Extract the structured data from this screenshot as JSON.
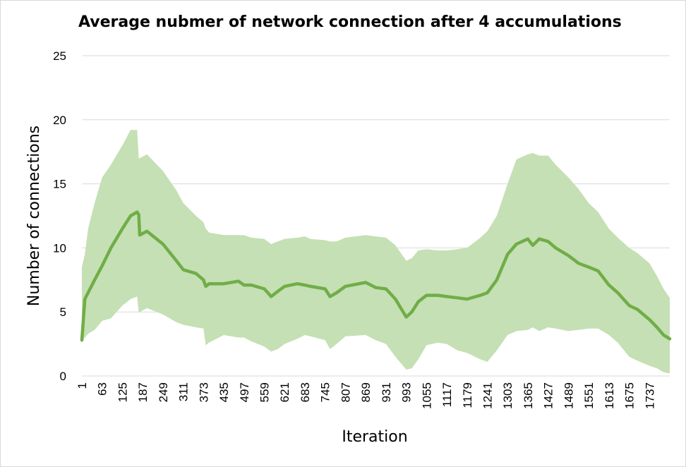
{
  "chart_data": {
    "type": "area",
    "title": "Average nubmer of network connection after 4 accumulations",
    "xlabel": "Iteration",
    "ylabel": "Number of connections",
    "ylim": [
      0,
      25
    ],
    "xlim": [
      1,
      1799
    ],
    "yticks": [
      0,
      5,
      10,
      15,
      20,
      25
    ],
    "xticks": [
      "1",
      "63",
      "125",
      "187",
      "249",
      "311",
      "373",
      "435",
      "497",
      "559",
      "621",
      "683",
      "745",
      "807",
      "869",
      "931",
      "993",
      "1055",
      "1117",
      "1179",
      "1241",
      "1303",
      "1365",
      "1427",
      "1489",
      "1551",
      "1613",
      "1675",
      "1737"
    ],
    "grid": "horizontal",
    "colors": {
      "band": "#c5e0b4",
      "line": "#70ad47",
      "grid": "#d9d9d9"
    },
    "x": [
      1,
      10,
      20,
      40,
      63,
      90,
      125,
      150,
      170,
      175,
      178,
      200,
      249,
      290,
      311,
      350,
      373,
      380,
      390,
      435,
      480,
      497,
      520,
      559,
      580,
      600,
      621,
      660,
      683,
      700,
      745,
      760,
      780,
      807,
      869,
      900,
      931,
      960,
      993,
      1010,
      1030,
      1055,
      1090,
      1117,
      1150,
      1179,
      1220,
      1241,
      1270,
      1303,
      1330,
      1365,
      1380,
      1400,
      1427,
      1450,
      1489,
      1520,
      1551,
      1580,
      1613,
      1640,
      1675,
      1700,
      1737,
      1760,
      1780,
      1799
    ],
    "series": [
      {
        "values": [
          2.8,
          6.0,
          6.5,
          7.5,
          8.6,
          10.0,
          11.5,
          12.5,
          12.8,
          12.6,
          11.0,
          11.3,
          10.3,
          9.0,
          8.3,
          8.0,
          7.5,
          7.0,
          7.2,
          7.2,
          7.4,
          7.1,
          7.1,
          6.8,
          6.2,
          6.6,
          7.0,
          7.2,
          7.1,
          7.0,
          6.8,
          6.2,
          6.5,
          7.0,
          7.3,
          6.9,
          6.8,
          6.0,
          4.6,
          5.0,
          5.8,
          6.3,
          6.3,
          6.2,
          6.1,
          6.0,
          6.3,
          6.5,
          7.5,
          9.5,
          10.3,
          10.7,
          10.2,
          10.7,
          10.5,
          10.0,
          9.4,
          8.8,
          8.5,
          8.2,
          7.1,
          6.5,
          5.5,
          5.2,
          4.4,
          3.8,
          3.2,
          2.9
        ],
        "upper": [
          8.5,
          9.5,
          11.5,
          13.5,
          15.5,
          16.5,
          18.0,
          19.2,
          19.2,
          17.0,
          17.0,
          17.3,
          16.0,
          14.5,
          13.5,
          12.5,
          12.0,
          11.5,
          11.2,
          11.0,
          11.0,
          11.0,
          10.8,
          10.7,
          10.3,
          10.5,
          10.7,
          10.8,
          10.9,
          10.7,
          10.6,
          10.5,
          10.5,
          10.8,
          11.0,
          10.9,
          10.8,
          10.2,
          9.0,
          9.2,
          9.8,
          9.9,
          9.8,
          9.8,
          9.9,
          10.0,
          10.8,
          11.3,
          12.5,
          15.0,
          16.9,
          17.3,
          17.4,
          17.2,
          17.2,
          16.5,
          15.5,
          14.6,
          13.5,
          12.8,
          11.5,
          10.8,
          10.0,
          9.6,
          8.8,
          7.8,
          6.8,
          6.1
        ],
        "lower": [
          2.8,
          3.0,
          3.3,
          3.6,
          4.3,
          4.5,
          5.5,
          6.0,
          6.2,
          5.0,
          5.0,
          5.3,
          4.8,
          4.2,
          4.0,
          3.8,
          3.7,
          2.4,
          2.6,
          3.2,
          3.0,
          3.0,
          2.7,
          2.3,
          1.9,
          2.1,
          2.5,
          2.9,
          3.2,
          3.1,
          2.8,
          2.1,
          2.5,
          3.1,
          3.2,
          2.8,
          2.5,
          1.5,
          0.5,
          0.6,
          1.3,
          2.4,
          2.6,
          2.5,
          2.0,
          1.8,
          1.3,
          1.1,
          2.0,
          3.2,
          3.5,
          3.6,
          3.8,
          3.5,
          3.8,
          3.7,
          3.5,
          3.6,
          3.7,
          3.7,
          3.2,
          2.6,
          1.5,
          1.2,
          0.8,
          0.6,
          0.3,
          0.2
        ]
      }
    ]
  }
}
